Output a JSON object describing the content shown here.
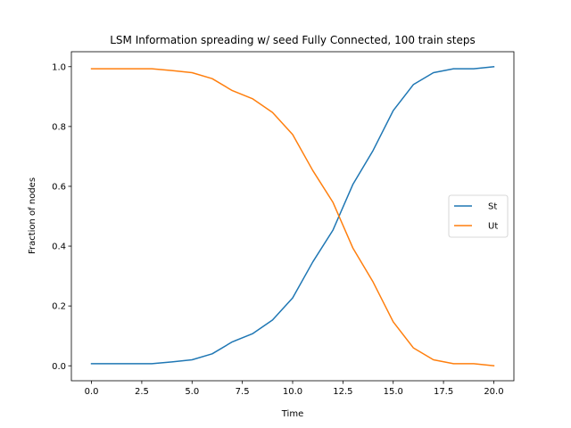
{
  "chart_data": {
    "type": "line",
    "title": "LSM Information spreading w/ seed Fully Connected, 100 train steps",
    "xlabel": "Time",
    "ylabel": "Fraction of nodes",
    "xlim": [
      -1.0,
      21.0
    ],
    "ylim": [
      -0.05,
      1.05
    ],
    "xticks": [
      0.0,
      2.5,
      5.0,
      7.5,
      10.0,
      12.5,
      15.0,
      17.5,
      20.0
    ],
    "xtick_labels": [
      "0.0",
      "2.5",
      "5.0",
      "7.5",
      "10.0",
      "12.5",
      "15.0",
      "17.5",
      "20.0"
    ],
    "yticks": [
      0.0,
      0.2,
      0.4,
      0.6,
      0.8,
      1.0
    ],
    "ytick_labels": [
      "0.0",
      "0.2",
      "0.4",
      "0.6",
      "0.8",
      "1.0"
    ],
    "grid": false,
    "legend_position": "center-right",
    "x": [
      0,
      1,
      2,
      3,
      4,
      5,
      6,
      7,
      8,
      9,
      10,
      11,
      12,
      13,
      14,
      15,
      16,
      17,
      18,
      19,
      20
    ],
    "series": [
      {
        "name": "St",
        "color": "#1f77b4",
        "values": [
          0.007,
          0.007,
          0.007,
          0.007,
          0.013,
          0.02,
          0.04,
          0.08,
          0.107,
          0.153,
          0.227,
          0.347,
          0.453,
          0.607,
          0.72,
          0.853,
          0.94,
          0.98,
          0.993,
          0.993,
          1.0
        ]
      },
      {
        "name": "Ut",
        "color": "#ff7f0e",
        "values": [
          0.993,
          0.993,
          0.993,
          0.993,
          0.987,
          0.98,
          0.96,
          0.92,
          0.893,
          0.847,
          0.773,
          0.653,
          0.547,
          0.393,
          0.28,
          0.147,
          0.06,
          0.02,
          0.007,
          0.007,
          0.0
        ]
      }
    ]
  }
}
